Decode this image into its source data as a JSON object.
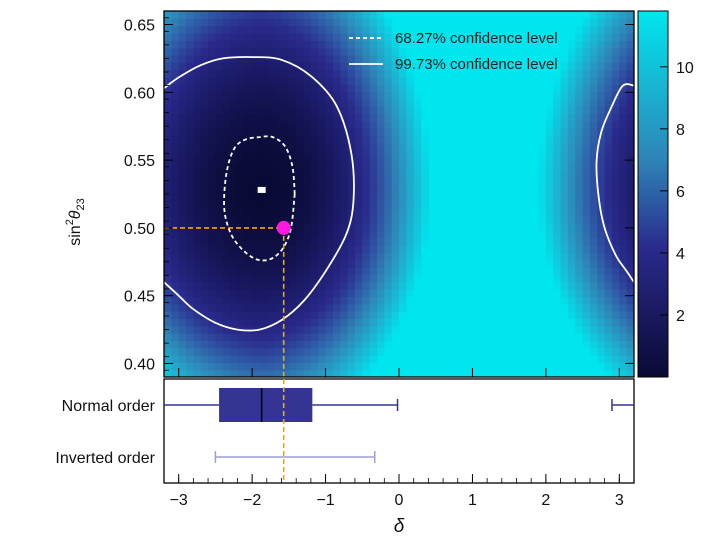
{
  "chart_data": [
    {
      "type": "heatmap",
      "title": "",
      "xlabel": "",
      "ylabel": "sin²θ23",
      "ylabel_parts": {
        "base": "sin",
        "sup": "2",
        "theta": "θ",
        "sub": "23"
      },
      "xlim": [
        -3.2,
        3.2
      ],
      "ylim": [
        0.39,
        0.66
      ],
      "yticks": [
        "0.40",
        "0.45",
        "0.50",
        "0.55",
        "0.60",
        "0.65"
      ],
      "yticks_values": [
        0.4,
        0.45,
        0.5,
        0.55,
        0.6,
        0.65
      ],
      "colorbar": {
        "min": 0,
        "max": 11.8,
        "ticks": [
          "2",
          "4",
          "6",
          "8",
          "10"
        ],
        "tick_values": [
          2,
          4,
          6,
          8,
          10
        ],
        "low_color": "#0a0a36",
        "mid_color": "#2a2a8c",
        "high_color": "#00e6ee"
      },
      "best_fit": {
        "label": "minimum",
        "x": -1.87,
        "y": 0.528,
        "color": "#ffffff"
      },
      "point": {
        "x": -1.57,
        "y": 0.5,
        "color": "#ff19e0"
      },
      "guide_color": "#ffa200",
      "contours": [
        {
          "name": "68.27% confidence level",
          "style": "dashed",
          "color": "#ffffff",
          "points": [
            [
              -1.42,
              0.525
            ],
            [
              -1.45,
              0.545
            ],
            [
              -1.55,
              0.56
            ],
            [
              -1.72,
              0.567
            ],
            [
              -1.9,
              0.567
            ],
            [
              -2.1,
              0.565
            ],
            [
              -2.25,
              0.558
            ],
            [
              -2.35,
              0.54
            ],
            [
              -2.38,
              0.515
            ],
            [
              -2.3,
              0.497
            ],
            [
              -2.15,
              0.485
            ],
            [
              -1.95,
              0.477
            ],
            [
              -1.75,
              0.477
            ],
            [
              -1.58,
              0.485
            ],
            [
              -1.47,
              0.5
            ],
            [
              -1.42,
              0.525
            ]
          ]
        },
        {
          "name": "99.73% confidence level",
          "style": "solid",
          "color": "#ffffff",
          "segments": [
            [
              [
                -3.2,
                0.603
              ],
              [
                -3.0,
                0.611
              ],
              [
                -2.7,
                0.62
              ],
              [
                -2.4,
                0.625
              ],
              [
                -2.0,
                0.626
              ],
              [
                -1.6,
                0.624
              ],
              [
                -1.2,
                0.612
              ],
              [
                -0.85,
                0.59
              ],
              [
                -0.65,
                0.555
              ],
              [
                -0.62,
                0.52
              ],
              [
                -0.72,
                0.495
              ],
              [
                -1.0,
                0.468
              ],
              [
                -1.3,
                0.446
              ],
              [
                -1.6,
                0.432
              ],
              [
                -1.9,
                0.425
              ],
              [
                -2.2,
                0.425
              ],
              [
                -2.5,
                0.43
              ],
              [
                -2.8,
                0.44
              ],
              [
                -3.0,
                0.45
              ],
              [
                -3.2,
                0.46
              ]
            ],
            [
              [
                3.2,
                0.605
              ],
              [
                3.05,
                0.605
              ],
              [
                2.9,
                0.59
              ],
              [
                2.75,
                0.57
              ],
              [
                2.69,
                0.548
              ],
              [
                2.72,
                0.522
              ],
              [
                2.8,
                0.5
              ],
              [
                2.95,
                0.48
              ],
              [
                3.1,
                0.468
              ],
              [
                3.2,
                0.46
              ]
            ]
          ]
        }
      ],
      "legend": [
        "68.27% confidence level",
        "99.73% confidence level"
      ]
    },
    {
      "type": "box",
      "xlabel": "δ",
      "xlim": [
        -3.2,
        3.2
      ],
      "xticks": [
        "−3",
        "−2",
        "−1",
        "0",
        "1",
        "2",
        "3"
      ],
      "xticks_values": [
        -3,
        -2,
        -1,
        0,
        1,
        2,
        3
      ],
      "categories": [
        "Normal order",
        "Inverted order"
      ],
      "series": [
        {
          "name": "Normal order",
          "q1": -2.45,
          "median": -1.87,
          "q3": -1.18,
          "whisker_low": -3.2,
          "whisker_high": -0.02,
          "extra_interval": [
            2.9,
            3.2
          ],
          "color": "#343493"
        },
        {
          "name": "Inverted order",
          "whisker_low": -2.5,
          "whisker_high": -0.33,
          "color": "#9d9ddb"
        }
      ],
      "guide_x": -1.57
    }
  ]
}
